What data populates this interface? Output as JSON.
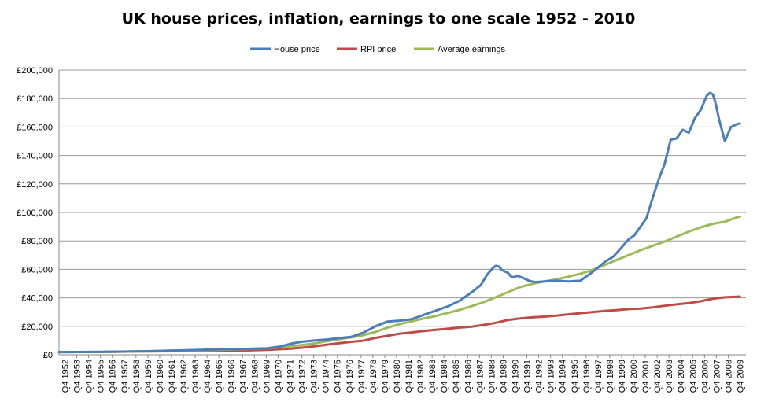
{
  "chart_data": {
    "type": "line",
    "title": "UK house prices, inflation, earnings to one scale 1952 - 2010",
    "xlabel": "",
    "ylabel": "",
    "ylim": [
      0,
      200000
    ],
    "yticks": [
      0,
      20000,
      40000,
      60000,
      80000,
      100000,
      120000,
      140000,
      160000,
      180000,
      200000
    ],
    "ytick_labels": [
      "£0",
      "£20,000",
      "£40,000",
      "£60,000",
      "£80,000",
      "£100,000",
      "£120,000",
      "£140,000",
      "£160,000",
      "£180,000",
      "£200,000"
    ],
    "x_tick_labels": [
      "Q4 1952",
      "Q4 1953",
      "Q4 1954",
      "Q4 1955",
      "Q4 1956",
      "Q4 1957",
      "Q4 1958",
      "Q4 1959",
      "Q4 1960",
      "Q4 1961",
      "Q4 1962",
      "Q4 1963",
      "Q4 1964",
      "Q4 1965",
      "Q4 1966",
      "Q4 1967",
      "Q4 1968",
      "Q4 1969",
      "Q4 1970",
      "Q4 1971",
      "Q4 1972",
      "Q4 1973",
      "Q4 1974",
      "Q4 1975",
      "Q4 1976",
      "Q4 1977",
      "Q4 1978",
      "Q4 1979",
      "Q4 1980",
      "Q4 1981",
      "Q4 1982",
      "Q4 1983",
      "Q4 1984",
      "Q4 1985",
      "Q4 1986",
      "Q4 1987",
      "Q4 1988",
      "Q4 1989",
      "Q4 1990",
      "Q4 1991",
      "Q4 1992",
      "Q4 1993",
      "Q4 1994",
      "Q4 1995",
      "Q4 1996",
      "Q4 1997",
      "Q4 1998",
      "Q4 1999",
      "Q4 2000",
      "Q4 2001",
      "Q4 2002",
      "Q4 2003",
      "Q4 2004",
      "Q4 2005",
      "Q4 2006",
      "Q4 2007",
      "Q4 2008",
      "Q4 2009"
    ],
    "grid": true,
    "legend_position": "top",
    "series": [
      {
        "name": "House price",
        "color": "#4a7ebb",
        "points": [
          [
            1952.75,
            1900
          ],
          [
            1956,
            2000
          ],
          [
            1960,
            2500
          ],
          [
            1962,
            2900
          ],
          [
            1964,
            3300
          ],
          [
            1966,
            3800
          ],
          [
            1968,
            4100
          ],
          [
            1970,
            4600
          ],
          [
            1971,
            5600
          ],
          [
            1972,
            7800
          ],
          [
            1973,
            9300
          ],
          [
            1974,
            10100
          ],
          [
            1975,
            10700
          ],
          [
            1976,
            11700
          ],
          [
            1977,
            12600
          ],
          [
            1978,
            15500
          ],
          [
            1979,
            20000
          ],
          [
            1980,
            23300
          ],
          [
            1981,
            24000
          ],
          [
            1982,
            25000
          ],
          [
            1983,
            28000
          ],
          [
            1984,
            31000
          ],
          [
            1985,
            34000
          ],
          [
            1986,
            38000
          ],
          [
            1987,
            44000
          ],
          [
            1987.75,
            49000
          ],
          [
            1988.25,
            56000
          ],
          [
            1988.75,
            61000
          ],
          [
            1989,
            62500
          ],
          [
            1989.25,
            62000
          ],
          [
            1989.5,
            59500
          ],
          [
            1990,
            57500
          ],
          [
            1990.25,
            55000
          ],
          [
            1990.5,
            54500
          ],
          [
            1990.75,
            55500
          ],
          [
            1991.25,
            54000
          ],
          [
            1991.75,
            52000
          ],
          [
            1992.25,
            51000
          ],
          [
            1993,
            51500
          ],
          [
            1994,
            52000
          ],
          [
            1995,
            51500
          ],
          [
            1996,
            52000
          ],
          [
            1996.5,
            55000
          ],
          [
            1997,
            58000
          ],
          [
            1998,
            65000
          ],
          [
            1998.75,
            69000
          ],
          [
            1999.5,
            76000
          ],
          [
            2000,
            81000
          ],
          [
            2000.5,
            84000
          ],
          [
            2001,
            90000
          ],
          [
            2001.5,
            96000
          ],
          [
            2002,
            110000
          ],
          [
            2002.5,
            123000
          ],
          [
            2003,
            134000
          ],
          [
            2003.5,
            151000
          ],
          [
            2004,
            152000
          ],
          [
            2004.5,
            158000
          ],
          [
            2005,
            156000
          ],
          [
            2005.5,
            166000
          ],
          [
            2006,
            172000
          ],
          [
            2006.5,
            182000
          ],
          [
            2006.75,
            184000
          ],
          [
            2007,
            183000
          ],
          [
            2007.25,
            176000
          ],
          [
            2007.5,
            166000
          ],
          [
            2008,
            150000
          ],
          [
            2008.25,
            155000
          ],
          [
            2008.5,
            160000
          ],
          [
            2009,
            162000
          ],
          [
            2009.25,
            162500
          ]
        ]
      },
      {
        "name": "RPI price",
        "color": "#be4b48",
        "points": [
          [
            1952.75,
            1900
          ],
          [
            1956,
            2000
          ],
          [
            1960,
            2300
          ],
          [
            1964,
            2600
          ],
          [
            1968,
            3000
          ],
          [
            1970,
            3400
          ],
          [
            1972,
            4300
          ],
          [
            1973,
            5000
          ],
          [
            1974,
            6000
          ],
          [
            1975,
            7100
          ],
          [
            1976,
            8200
          ],
          [
            1977,
            9100
          ],
          [
            1978,
            9900
          ],
          [
            1979,
            11800
          ],
          [
            1980,
            13300
          ],
          [
            1981,
            14800
          ],
          [
            1982,
            15700
          ],
          [
            1983,
            16700
          ],
          [
            1984,
            17500
          ],
          [
            1985,
            18300
          ],
          [
            1986,
            19100
          ],
          [
            1987,
            19800
          ],
          [
            1988,
            21000
          ],
          [
            1989,
            22500
          ],
          [
            1990,
            24500
          ],
          [
            1991,
            25500
          ],
          [
            1992,
            26300
          ],
          [
            1993,
            26800
          ],
          [
            1994,
            27500
          ],
          [
            1995,
            28400
          ],
          [
            1996,
            29200
          ],
          [
            1997,
            30000
          ],
          [
            1998,
            30800
          ],
          [
            1999,
            31400
          ],
          [
            2000,
            32100
          ],
          [
            2001,
            32500
          ],
          [
            2002,
            33300
          ],
          [
            2003,
            34400
          ],
          [
            2004,
            35400
          ],
          [
            2005,
            36300
          ],
          [
            2006,
            37600
          ],
          [
            2007,
            39400
          ],
          [
            2008,
            40400
          ],
          [
            2009,
            40800
          ],
          [
            2009.25,
            40900
          ]
        ]
      },
      {
        "name": "Average earnings",
        "color": "#9bbb59",
        "points": [
          [
            1952.75,
            1900
          ],
          [
            1956,
            2000
          ],
          [
            1960,
            2400
          ],
          [
            1962,
            2800
          ],
          [
            1964,
            3100
          ],
          [
            1966,
            3500
          ],
          [
            1968,
            3900
          ],
          [
            1970,
            4500
          ],
          [
            1972,
            6000
          ],
          [
            1973,
            6900
          ],
          [
            1974,
            8000
          ],
          [
            1975,
            9600
          ],
          [
            1976,
            11000
          ],
          [
            1977,
            12200
          ],
          [
            1978,
            13800
          ],
          [
            1979,
            16000
          ],
          [
            1980,
            19000
          ],
          [
            1981,
            21500
          ],
          [
            1982,
            23500
          ],
          [
            1983,
            25500
          ],
          [
            1984,
            27200
          ],
          [
            1985,
            29400
          ],
          [
            1986,
            31600
          ],
          [
            1987,
            34200
          ],
          [
            1988,
            37000
          ],
          [
            1989,
            40500
          ],
          [
            1990,
            44000
          ],
          [
            1991,
            47500
          ],
          [
            1992,
            49800
          ],
          [
            1993,
            51500
          ],
          [
            1994,
            53000
          ],
          [
            1995,
            54800
          ],
          [
            1996,
            56900
          ],
          [
            1997,
            59500
          ],
          [
            1998,
            63000
          ],
          [
            1999,
            66500
          ],
          [
            2000,
            70000
          ],
          [
            2001,
            73500
          ],
          [
            2002,
            76500
          ],
          [
            2003,
            79500
          ],
          [
            2004,
            83000
          ],
          [
            2005,
            86500
          ],
          [
            2006,
            89500
          ],
          [
            2007,
            92000
          ],
          [
            2008,
            93500
          ],
          [
            2009,
            96500
          ],
          [
            2009.25,
            97000
          ]
        ]
      }
    ]
  }
}
